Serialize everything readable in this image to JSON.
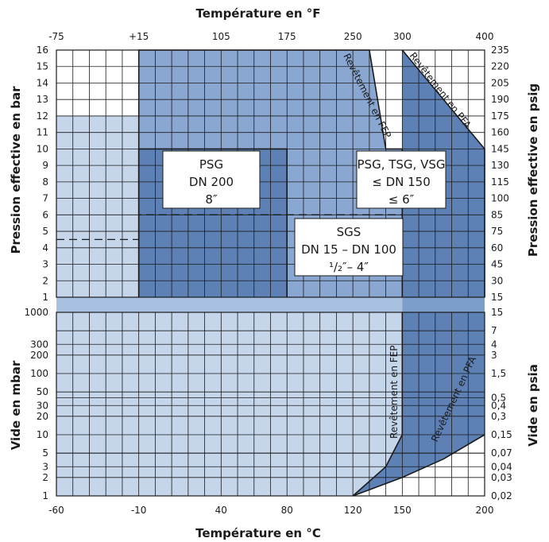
{
  "chart_data": {
    "type": "area",
    "title_top": "Température en °F",
    "title_bottom": "Température en °C",
    "ylabel_left_upper": "Pression effective en bar",
    "ylabel_left_lower": "Vide en mbar",
    "ylabel_right_upper": "Pression effective en psig",
    "ylabel_right_lower": "Vide en psia",
    "x_celsius_ticks": [
      "-60",
      "-10",
      "40",
      "80",
      "120",
      "150",
      "200"
    ],
    "x_celsius_values": [
      -60,
      -10,
      40,
      80,
      120,
      150,
      200
    ],
    "x_fahrenheit_ticks": [
      "-75",
      "+15",
      "105",
      "175",
      "250",
      "300",
      "400"
    ],
    "x_fahrenheit_celsius": [
      -60,
      -10,
      40,
      80,
      120,
      150,
      200
    ],
    "x_range": [
      -60,
      200
    ],
    "pressure_bar_ticks": [
      "1",
      "2",
      "3",
      "4",
      "5",
      "6",
      "7",
      "8",
      "9",
      "10",
      "11",
      "12",
      "13",
      "14",
      "15",
      "16"
    ],
    "pressure_psig_ticks": [
      "15",
      "30",
      "45",
      "60",
      "75",
      "85",
      "100",
      "115",
      "130",
      "145",
      "160",
      "175",
      "190",
      "205",
      "220",
      "235"
    ],
    "vacuum_mbar_ticks": [
      "1000",
      "300",
      "200",
      "100",
      "50",
      "30",
      "20",
      "10",
      "5",
      "3",
      "2",
      "1"
    ],
    "vacuum_mbar_values": [
      1000,
      300,
      200,
      100,
      50,
      30,
      20,
      10,
      5,
      3,
      2,
      1
    ],
    "vacuum_psia_ticks": [
      "15",
      "7",
      "4",
      "3",
      "1,5",
      "0,5",
      "0,4",
      "0,3",
      "0,15",
      "0,07",
      "0,04",
      "0,03",
      "0,02"
    ],
    "vacuum_psia_mbar": [
      1000,
      500,
      300,
      200,
      100,
      40,
      30,
      20,
      10,
      5,
      3,
      2,
      1
    ],
    "regions": [
      {
        "name": "SGS",
        "label_lines": [
          "SGS",
          "DN 15 – DN 100",
          "¹/₂″– 4″"
        ],
        "pressure_points": [
          [
            -60,
            12
          ],
          [
            -10,
            12
          ],
          [
            -10,
            16
          ],
          [
            130,
            16
          ],
          [
            140,
            10
          ],
          [
            150,
            10
          ],
          [
            150,
            1
          ],
          [
            -60,
            1
          ]
        ],
        "vacuum_points": [
          [
            -60,
            1000
          ],
          [
            150,
            1000
          ],
          [
            150,
            10
          ],
          [
            140,
            3
          ],
          [
            120,
            1
          ],
          [
            -60,
            1
          ]
        ],
        "color": "#c5d5ea"
      },
      {
        "name": "SGS dashed limit",
        "dashed_points": [
          [
            -60,
            4.5
          ],
          [
            -10,
            4.5
          ],
          [
            -10,
            6
          ],
          [
            150,
            6
          ]
        ]
      },
      {
        "name": "PSG",
        "label_lines": [
          "PSG",
          "DN 200",
          "8″"
        ],
        "pressure_points": [
          [
            -10,
            1
          ],
          [
            -10,
            10
          ],
          [
            80,
            10
          ],
          [
            80,
            1
          ]
        ],
        "color": "#5d80b5"
      },
      {
        "name": "PSG, TSG, VSG",
        "label_lines": [
          "PSG, TSG, VSG",
          "≤ DN 150",
          "≤ 6″"
        ],
        "pressure_points": [
          [
            -10,
            1
          ],
          [
            -10,
            16
          ],
          [
            130,
            16
          ],
          [
            140,
            10
          ],
          [
            150,
            10
          ],
          [
            150,
            1
          ]
        ],
        "color": "#8aa7d2"
      },
      {
        "name": "Revêtement en PFA",
        "pressure_points": [
          [
            150,
            16
          ],
          [
            200,
            10
          ],
          [
            200,
            1
          ],
          [
            150,
            1
          ]
        ],
        "vacuum_points": [
          [
            150,
            1000
          ],
          [
            200,
            1000
          ],
          [
            200,
            10
          ],
          [
            175,
            4
          ],
          [
            150,
            2
          ],
          [
            120,
            1
          ],
          [
            140,
            3
          ],
          [
            150,
            10
          ]
        ],
        "color": "#5d80b5"
      }
    ],
    "lining_labels": [
      {
        "text": "Revêtement en FEP",
        "zone": "pressure"
      },
      {
        "text": "Revêtement en PFA",
        "zone": "pressure"
      },
      {
        "text": "Revêtement en FEP",
        "zone": "vacuum"
      },
      {
        "text": "Revêtement en PFA",
        "zone": "vacuum"
      }
    ],
    "band_color": "#a9c1e0",
    "grid": true
  }
}
